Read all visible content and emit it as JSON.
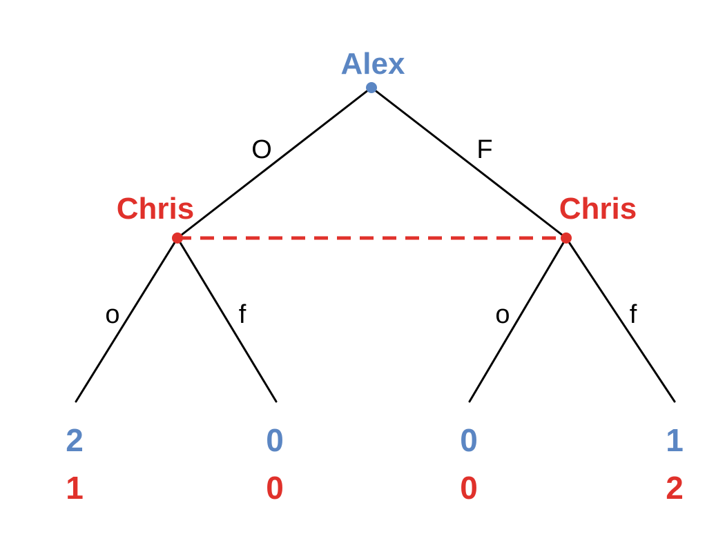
{
  "colors": {
    "alex": "#5b86c3",
    "chris": "#e0312b",
    "edge": "#000000"
  },
  "players": {
    "root": "Alex",
    "left": "Chris",
    "right": "Chris"
  },
  "actions": {
    "alex_left": "O",
    "alex_right": "F",
    "chris_left_left": "o",
    "chris_left_right": "f",
    "chris_right_left": "o",
    "chris_right_right": "f"
  },
  "payoffs": [
    {
      "alex": "2",
      "chris": "1"
    },
    {
      "alex": "0",
      "chris": "0"
    },
    {
      "alex": "0",
      "chris": "0"
    },
    {
      "alex": "1",
      "chris": "2"
    }
  ]
}
